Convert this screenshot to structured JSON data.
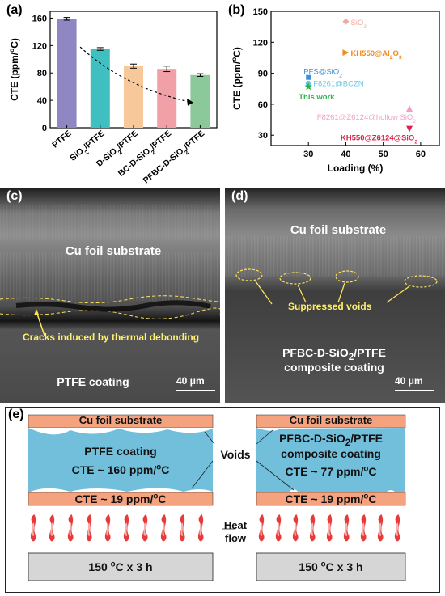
{
  "panels": {
    "a": "(a)",
    "b": "(b)",
    "c": "(c)",
    "d": "(d)",
    "e": "(e)"
  },
  "chart_data": [
    {
      "type": "bar",
      "panel": "a",
      "categories": [
        "PTFE",
        "SiO2/PTFE",
        "D-SiO2/PTFE",
        "BC-D-SiO2/PTFE",
        "PFBC-D-SiO2/PTFE"
      ],
      "category_subs": [
        [
          "PTFE"
        ],
        [
          "SiO",
          "2",
          "/PTFE"
        ],
        [
          "D-SiO",
          "2",
          "/PTFE"
        ],
        [
          "BC-D-SiO",
          "2",
          "/PTFE"
        ],
        [
          "PFBC-D-SiO",
          "2",
          "/PTFE"
        ]
      ],
      "values": [
        159,
        115,
        90,
        86,
        77
      ],
      "errors": [
        2,
        2,
        3,
        4,
        2
      ],
      "colors": [
        "#8f87c4",
        "#3fbfbf",
        "#f7c89a",
        "#f2a0a8",
        "#8bc99a"
      ],
      "ylabel": "CTE (ppm/°C)",
      "ylabel_parts": [
        "CTE (ppm/",
        "o",
        "C)"
      ],
      "ylim": [
        0,
        170
      ],
      "yticks": [
        0,
        40,
        80,
        120,
        160
      ],
      "trend_arrow": true
    },
    {
      "type": "scatter",
      "panel": "b",
      "xlabel": "Loading (%)",
      "ylabel": "CTE (ppm/°C)",
      "ylabel_parts": [
        "CTE (ppm/",
        "o",
        "C)"
      ],
      "xlim": [
        20,
        65
      ],
      "ylim": [
        20,
        150
      ],
      "xticks": [
        30,
        40,
        50,
        60
      ],
      "yticks": [
        30,
        60,
        90,
        120,
        150
      ],
      "points": [
        {
          "label": "SiO2",
          "parts": [
            "SiO",
            "2",
            ""
          ],
          "x": 40,
          "y": 140,
          "color": "#f4a6a0",
          "marker": "diamond"
        },
        {
          "label": "KH550@Al2O3",
          "parts": [
            "KH550@Al",
            "2",
            "O",
            "3",
            ""
          ],
          "x": 40,
          "y": 110,
          "color": "#f08c1c",
          "marker": "triangle-right"
        },
        {
          "label": "PFS@SiO2",
          "parts": [
            "PFS@SiO",
            "2",
            ""
          ],
          "x": 30,
          "y": 86,
          "color": "#3c8fd8",
          "marker": "square"
        },
        {
          "label": "F8261@BCZN",
          "parts": [
            "F8261@BCZN"
          ],
          "x": 30,
          "y": 80,
          "color": "#6ec8e8",
          "marker": "circle"
        },
        {
          "label": "This work",
          "parts": [
            "This work"
          ],
          "x": 30,
          "y": 77,
          "color": "#2eb34a",
          "marker": "star"
        },
        {
          "label": "F8261@Z6124@hollow SiO2",
          "parts": [
            "F8261@Z6124@hollow SiO",
            "2",
            ""
          ],
          "x": 57,
          "y": 56,
          "color": "#f0a0c8",
          "marker": "triangle-up"
        },
        {
          "label": "KH550@Z6124@SiO2",
          "parts": [
            "KH550@Z6124@SiO",
            "2",
            ""
          ],
          "x": 57,
          "y": 36,
          "color": "#e0204a",
          "marker": "triangle-down"
        }
      ]
    }
  ],
  "sem_c": {
    "substrate": "Cu foil substrate",
    "cracks": "Cracks induced by thermal debonding",
    "coating": "PTFE coating",
    "scale": "40 μm"
  },
  "sem_d": {
    "substrate": "Cu foil substrate",
    "voids": "Suppressed voids",
    "coating_line1": "PFBC-D-SiO2/PTFE",
    "coating_line2": "composite coating",
    "scale": "40 μm"
  },
  "schematic": {
    "left": {
      "top_layer": "Cu foil substrate",
      "coating": "PTFE coating",
      "coating_cte": "CTE ~ 160 ppm/°C",
      "bottom_cte": "CTE ~ 19 ppm/°C",
      "heater": "150 °C x 3 h"
    },
    "right": {
      "top_layer": "Cu foil substrate",
      "coating_line1": "PFBC-D-SiO2/PTFE",
      "coating_line2": "composite coating",
      "coating_cte": "CTE ~ 77 ppm/°C",
      "bottom_cte": "CTE ~ 19 ppm/°C",
      "heater": "150 °C x 3 h"
    },
    "voids_label": "Voids",
    "heat_label_1": "Heat",
    "heat_label_2": "flow"
  },
  "colors": {
    "copper": "#f4a37e",
    "coating": "#72bfdc",
    "flame": "#e83a3a",
    "heater": "#d6d6d6"
  }
}
